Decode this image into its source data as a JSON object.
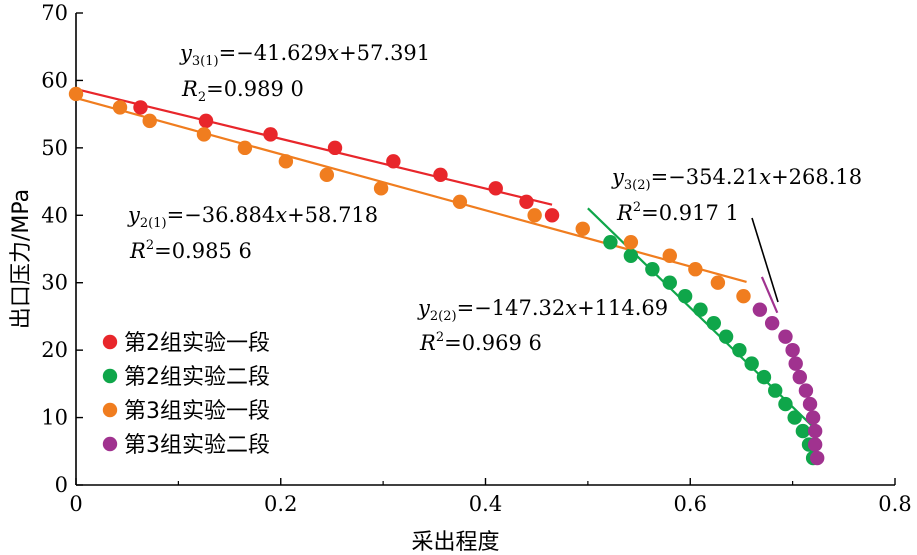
{
  "chart_data": {
    "type": "scatter",
    "xlabel": "采出程度",
    "ylabel": "出口压力/MPa",
    "xlim": [
      0,
      0.8
    ],
    "ylim": [
      0,
      70
    ],
    "xticks": [
      0,
      0.2,
      0.4,
      0.6,
      0.8
    ],
    "xtick_labels": [
      "0",
      "0.2",
      "0.4",
      "0.6",
      "0.8"
    ],
    "yticks": [
      0,
      10,
      20,
      30,
      40,
      50,
      60,
      70
    ],
    "ytick_labels": [
      "0",
      "10",
      "20",
      "30",
      "40",
      "50",
      "60",
      "70"
    ],
    "grid": false,
    "legend_position": "bottom-left",
    "series": [
      {
        "name": "第2组实验一段",
        "color": "#e8262b",
        "x": [
          0.063,
          0.127,
          0.19,
          0.253,
          0.31,
          0.356,
          0.41,
          0.44,
          0.465
        ],
        "y": [
          56,
          54,
          52,
          50,
          48,
          46,
          44,
          42,
          40
        ]
      },
      {
        "name": "第2组实验二段",
        "color": "#0fa64a",
        "x": [
          0.522,
          0.542,
          0.563,
          0.58,
          0.595,
          0.61,
          0.623,
          0.635,
          0.648,
          0.66,
          0.672,
          0.683,
          0.693,
          0.702,
          0.71,
          0.716,
          0.72
        ],
        "y": [
          36,
          34,
          32,
          30,
          28,
          26,
          24,
          22,
          20,
          18,
          16,
          14,
          12,
          10,
          8,
          6,
          4
        ]
      },
      {
        "name": "第3组实验一段",
        "color": "#f07d1f",
        "x": [
          0,
          0.043,
          0.072,
          0.125,
          0.165,
          0.205,
          0.245,
          0.298,
          0.375,
          0.448,
          0.495,
          0.542,
          0.58,
          0.605,
          0.627,
          0.652
        ],
        "y": [
          58,
          56,
          54,
          52,
          50,
          48,
          46,
          44,
          42,
          40,
          38,
          36,
          34,
          32,
          30,
          28
        ]
      },
      {
        "name": "第3组实验二段",
        "color": "#a0328f",
        "x": [
          0.668,
          0.68,
          0.693,
          0.7,
          0.703,
          0.707,
          0.713,
          0.717,
          0.72,
          0.722,
          0.722,
          0.724
        ],
        "y": [
          26,
          24,
          22,
          20,
          18,
          16,
          14,
          12,
          10,
          8,
          6,
          4
        ]
      }
    ],
    "fits": [
      {
        "series": "第2组实验一段",
        "color": "#e8262b",
        "slope": -36.884,
        "intercept": 58.718,
        "x_range": [
          0,
          0.465
        ]
      },
      {
        "series": "第3组实验一段",
        "color": "#f07d1f",
        "slope": -41.629,
        "intercept": 57.391,
        "x_range": [
          0,
          0.655
        ]
      },
      {
        "series": "第2组实验二段",
        "color": "#0fa64a",
        "slope": -147.32,
        "intercept": 114.69,
        "x_range": [
          0.5,
          0.725
        ]
      },
      {
        "series": "第3组实验二段",
        "color": "#a0328f",
        "slope": -354.21,
        "intercept": 268.18,
        "x_range": [
          0.67,
          0.685
        ]
      }
    ],
    "annotations": [
      {
        "y_var": "y",
        "y_sub": "3(1)",
        "formula": "=−41.629",
        "x_var": "x",
        "tail": "+57.391",
        "r_base": "R",
        "r_sup": "",
        "r_sub": "2",
        "r_value": "=0.989 0"
      },
      {
        "y_var": "y",
        "y_sub": "2(1)",
        "formula": "=−36.884",
        "x_var": "x",
        "tail": "+58.718",
        "r_base": "R",
        "r_sup": "2",
        "r_sub": "",
        "r_value": "=0.985 6"
      },
      {
        "y_var": "y",
        "y_sub": "3(2)",
        "formula": "=−354.21",
        "x_var": "x",
        "tail": "+268.18",
        "r_base": "R",
        "r_sup": "2",
        "r_sub": "",
        "r_value": "=0.917 1"
      },
      {
        "y_var": "y",
        "y_sub": "2(2)",
        "formula": "=−147.32",
        "x_var": "x",
        "tail": "+114.69",
        "r_base": "R",
        "r_sup": "2",
        "r_sub": "",
        "r_value": "=0.969 6"
      }
    ]
  }
}
